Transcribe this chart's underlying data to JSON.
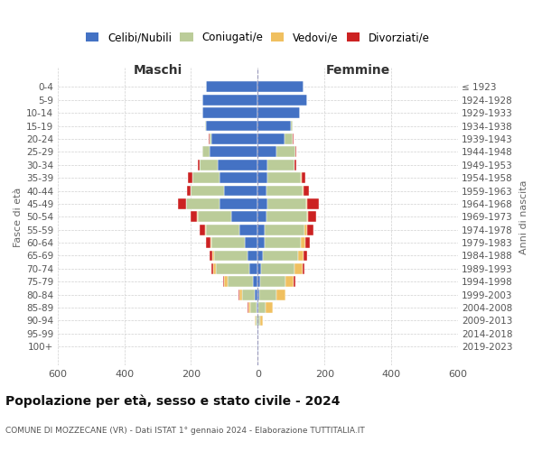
{
  "age_groups": [
    "0-4",
    "5-9",
    "10-14",
    "15-19",
    "20-24",
    "25-29",
    "30-34",
    "35-39",
    "40-44",
    "45-49",
    "50-54",
    "55-59",
    "60-64",
    "65-69",
    "70-74",
    "75-79",
    "80-84",
    "85-89",
    "90-94",
    "95-99",
    "100+"
  ],
  "birth_years": [
    "2019-2023",
    "2014-2018",
    "2009-2013",
    "2004-2008",
    "1999-2003",
    "1994-1998",
    "1989-1993",
    "1984-1988",
    "1979-1983",
    "1974-1978",
    "1969-1973",
    "1964-1968",
    "1959-1963",
    "1954-1958",
    "1949-1953",
    "1944-1948",
    "1939-1943",
    "1934-1938",
    "1929-1933",
    "1924-1928",
    "≤ 1923"
  ],
  "colors": {
    "celibe": "#4472C4",
    "coniugato": "#BBCC99",
    "vedovo": "#F0C060",
    "divorziato": "#CC2222"
  },
  "maschi": {
    "celibe": [
      155,
      165,
      165,
      155,
      140,
      145,
      120,
      115,
      100,
      115,
      80,
      55,
      38,
      30,
      25,
      15,
      8,
      5,
      2,
      1,
      2
    ],
    "coniugato": [
      0,
      0,
      0,
      2,
      5,
      20,
      55,
      80,
      100,
      100,
      100,
      100,
      100,
      100,
      100,
      75,
      40,
      18,
      4,
      0,
      0
    ],
    "vedovo": [
      0,
      0,
      0,
      0,
      0,
      0,
      0,
      1,
      1,
      1,
      2,
      3,
      5,
      7,
      8,
      10,
      8,
      6,
      3,
      0,
      0
    ],
    "divorziato": [
      0,
      0,
      0,
      0,
      1,
      2,
      5,
      12,
      10,
      22,
      18,
      15,
      12,
      8,
      5,
      5,
      3,
      1,
      0,
      0,
      0
    ]
  },
  "femmine": {
    "nubile": [
      138,
      148,
      125,
      100,
      80,
      55,
      30,
      30,
      25,
      28,
      25,
      22,
      20,
      15,
      10,
      8,
      5,
      3,
      2,
      1,
      1
    ],
    "coniugata": [
      0,
      0,
      2,
      5,
      25,
      58,
      80,
      100,
      110,
      118,
      122,
      118,
      110,
      105,
      100,
      75,
      52,
      20,
      5,
      0,
      0
    ],
    "vedova": [
      0,
      0,
      0,
      0,
      0,
      0,
      1,
      1,
      2,
      3,
      3,
      8,
      12,
      18,
      25,
      25,
      25,
      22,
      8,
      2,
      0
    ],
    "divorziata": [
      0,
      0,
      0,
      0,
      1,
      2,
      5,
      12,
      15,
      35,
      25,
      20,
      15,
      10,
      6,
      4,
      2,
      1,
      0,
      0,
      0
    ]
  },
  "xlim": 600,
  "title_main": "Popolazione per età, sesso e stato civile - 2024",
  "title_sub": "COMUNE DI MOZZECANE (VR) - Dati ISTAT 1° gennaio 2024 - Elaborazione TUTTITALIA.IT",
  "ylabel_left": "Fasce di età",
  "ylabel_right": "Anni di nascita",
  "xlabel_left": "Maschi",
  "xlabel_right": "Femmine"
}
